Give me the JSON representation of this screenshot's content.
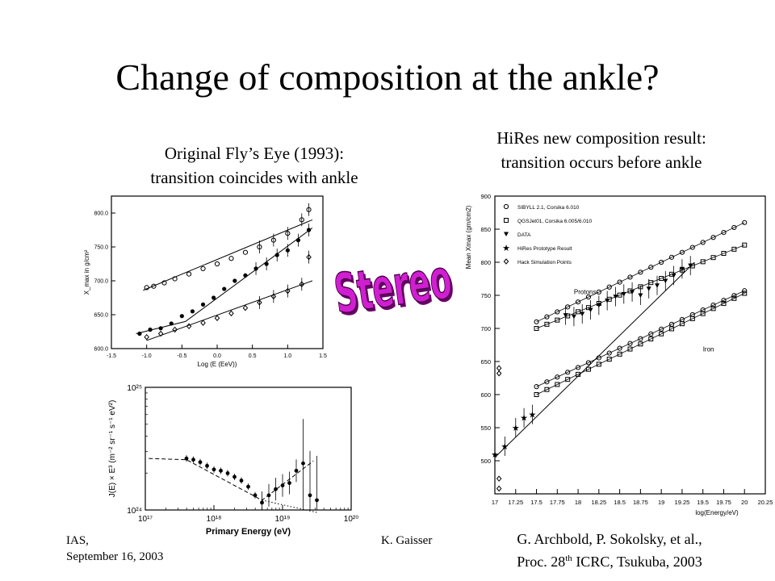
{
  "slide": {
    "title": "Change of composition at the ankle?",
    "left_caption_line1": "Original Fly’s Eye (1993):",
    "left_caption_line2": "transition coincides with ankle",
    "right_caption_line1": "HiRes new composition result:",
    "right_caption_line2": "transition occurs before ankle",
    "stereo_label": "Stereo",
    "footer_left_line1": "IAS,",
    "footer_left_line2": "September 16, 2003",
    "footer_mid": "K. Gaisser",
    "reference_line1": "G. Archbold, P. Sokolsky, et al.,",
    "reference_line2_pre": "Proc. 28",
    "reference_line2_sup": "th",
    "reference_line2_post": " ICRC, Tsukuba, 2003"
  },
  "chart_data": [
    {
      "type": "scatter",
      "id": "flys-eye-xmax",
      "xlabel": "Log (E (EeV))",
      "ylabel": "X_max in g/cm²",
      "xlim": [
        -1.5,
        1.5
      ],
      "ylim": [
        600,
        825
      ],
      "xticks": [
        "-1.5",
        "-1.0",
        "-0.5",
        "0.0",
        "0.5",
        "1.0",
        "1.5"
      ],
      "yticks": [
        "600.0",
        "650.0",
        "700.0",
        "750.0",
        "800.0"
      ],
      "series": [
        {
          "marker": "open-circle",
          "x": [
            -1.0,
            -0.9,
            -0.75,
            -0.6,
            -0.4,
            -0.2,
            0.0,
            0.2,
            0.4,
            0.6,
            0.8,
            1.0,
            1.2,
            1.3
          ],
          "y": [
            690,
            692,
            697,
            703,
            710,
            718,
            725,
            733,
            742,
            750,
            760,
            770,
            790,
            805
          ]
        },
        {
          "marker": "filled-circle",
          "x": [
            -1.1,
            -0.95,
            -0.8,
            -0.65,
            -0.5,
            -0.35,
            -0.2,
            -0.05,
            0.1,
            0.25,
            0.4,
            0.55,
            0.7,
            0.85,
            1.0,
            1.15,
            1.3
          ],
          "y": [
            622,
            628,
            630,
            637,
            648,
            655,
            665,
            675,
            688,
            700,
            708,
            718,
            725,
            738,
            745,
            760,
            775
          ]
        },
        {
          "marker": "open-diamond",
          "x": [
            -1.0,
            -0.8,
            -0.6,
            -0.4,
            -0.2,
            0.0,
            0.2,
            0.4,
            0.6,
            0.8,
            1.0,
            1.2,
            1.3
          ],
          "y": [
            617,
            622,
            628,
            633,
            638,
            645,
            652,
            660,
            668,
            677,
            685,
            695,
            735
          ]
        }
      ],
      "fit_lines": [
        {
          "x": [
            -1.05,
            1.35
          ],
          "y": [
            686,
            790
          ]
        },
        {
          "x": [
            -1.15,
            -0.45,
            1.35
          ],
          "y": [
            622,
            640,
            778
          ]
        },
        {
          "x": [
            -1.0,
            1.35
          ],
          "y": [
            612,
            700
          ]
        }
      ]
    },
    {
      "type": "scatter",
      "id": "flys-eye-spectrum",
      "xlabel": "Primary Energy (eV)",
      "ylabel": "J(E) × E³ (m⁻² sr⁻¹ s⁻¹ eV²)",
      "x_scale": "log",
      "y_scale": "log",
      "xlim": [
        1e+17,
        1e+20
      ],
      "ylim": [
        1e+24,
        1e+25
      ],
      "xticks": [
        "10¹⁷",
        "10¹⁸",
        "10¹⁹",
        "10²⁰"
      ],
      "yticks": [
        "10²⁴",
        "10²⁵"
      ],
      "x_logE": [
        17.6,
        17.7,
        17.8,
        17.9,
        18.0,
        18.1,
        18.2,
        18.3,
        18.4,
        18.5,
        18.6,
        18.7,
        18.8,
        18.9,
        19.0,
        19.1,
        19.2,
        19.3,
        19.4,
        19.5
      ],
      "y_log": [
        24.42,
        24.41,
        24.39,
        24.36,
        24.33,
        24.32,
        24.3,
        24.27,
        24.24,
        24.19,
        24.12,
        24.06,
        24.12,
        24.17,
        24.2,
        24.22,
        24.32,
        24.38,
        24.12,
        24.08
      ]
    },
    {
      "type": "scatter",
      "id": "hires-xmax",
      "xlabel": "log(Energy/eV)",
      "ylabel": "Mean Xmax (gm/cm2)",
      "xlim": [
        17,
        20.25
      ],
      "ylim": [
        450,
        900
      ],
      "xticks": [
        "17",
        "17.25",
        "17.5",
        "17.75",
        "18",
        "18.25",
        "18.5",
        "18.75",
        "19",
        "19.25",
        "19.5",
        "19.75",
        "20",
        "20.25"
      ],
      "yticks": [
        "500",
        "550",
        "600",
        "650",
        "700",
        "750",
        "800",
        "850",
        "900"
      ],
      "legend": [
        "SIBYLL 2.1, Corsika 6.010",
        "QGSJet01, Corsika 6.005/6.010",
        "DATA",
        "HiRes Prototype Result",
        "Hack Simulation Points"
      ],
      "annotations": [
        "Protons",
        "Iron"
      ],
      "series": [
        {
          "name": "SIBYLL 2.1, Corsika 6.010",
          "marker": "open-circle",
          "x0": 17.5,
          "x1": 20.0,
          "y0": 710,
          "y1": 860
        },
        {
          "name": "QGSJet01, Corsika 6.005/6.010",
          "marker": "open-square",
          "x0": 17.5,
          "x1": 20.0,
          "y0": 700,
          "y1": 826
        },
        {
          "name": "SIBYLL 2.1, Corsika 6.010",
          "marker": "open-circle",
          "x0": 17.5,
          "x1": 20.0,
          "y0": 612,
          "y1": 757
        },
        {
          "name": "QGSJet01, Corsika 6.005/6.010",
          "marker": "open-square",
          "x0": 17.5,
          "x1": 20.0,
          "y0": 600,
          "y1": 753
        },
        {
          "name": "DATA",
          "marker": "filled-triangle",
          "x": [
            17.85,
            17.95,
            18.05,
            18.15,
            18.25,
            18.35,
            18.45,
            18.55,
            18.65,
            18.75,
            18.85,
            18.95,
            19.05,
            19.15,
            19.25,
            19.35
          ],
          "y": [
            720,
            718,
            722,
            728,
            735,
            742,
            748,
            752,
            755,
            750,
            760,
            765,
            772,
            780,
            790,
            795
          ]
        },
        {
          "name": "HiRes Prototype Result",
          "marker": "star",
          "x": [
            17.0,
            17.12,
            17.25,
            17.35,
            17.45
          ],
          "y": [
            510,
            522,
            550,
            565,
            570
          ]
        },
        {
          "name": "Hack Simulation Points",
          "marker": "open-diamond",
          "x": [
            17.05,
            17.05,
            17.05,
            17.05
          ],
          "y": [
            473,
            458,
            640,
            632
          ]
        }
      ],
      "fit_line": {
        "x": [
          17.0,
          19.4
        ],
        "y": [
          505,
          800
        ]
      }
    }
  ]
}
